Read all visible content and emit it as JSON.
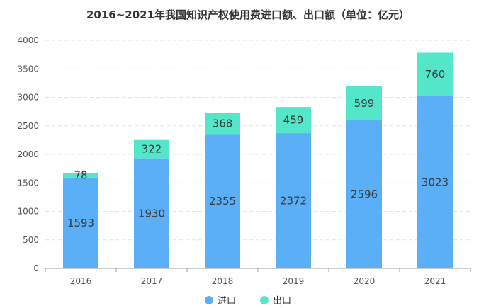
{
  "colors": {
    "import": "#5aaff7",
    "export": "#53e6c8",
    "grid": "#e2e2e2",
    "axis": "#9a9a9a"
  },
  "chart_data": {
    "type": "bar",
    "stacked": true,
    "title": "2016~2021年我国知识产权使用费进口额、出口额（单位：亿元）",
    "categories": [
      "2016",
      "2017",
      "2018",
      "2019",
      "2020",
      "2021"
    ],
    "series": [
      {
        "name": "进口",
        "values": [
          1593,
          1930,
          2355,
          2372,
          2596,
          3023
        ]
      },
      {
        "name": "出口",
        "values": [
          78,
          322,
          368,
          459,
          599,
          760
        ]
      }
    ],
    "ylim": [
      0,
      4000
    ],
    "yticks": [
      0,
      500,
      1000,
      1500,
      2000,
      2500,
      3000,
      3500,
      4000
    ],
    "grid": true,
    "legend_position": "bottom-center"
  }
}
